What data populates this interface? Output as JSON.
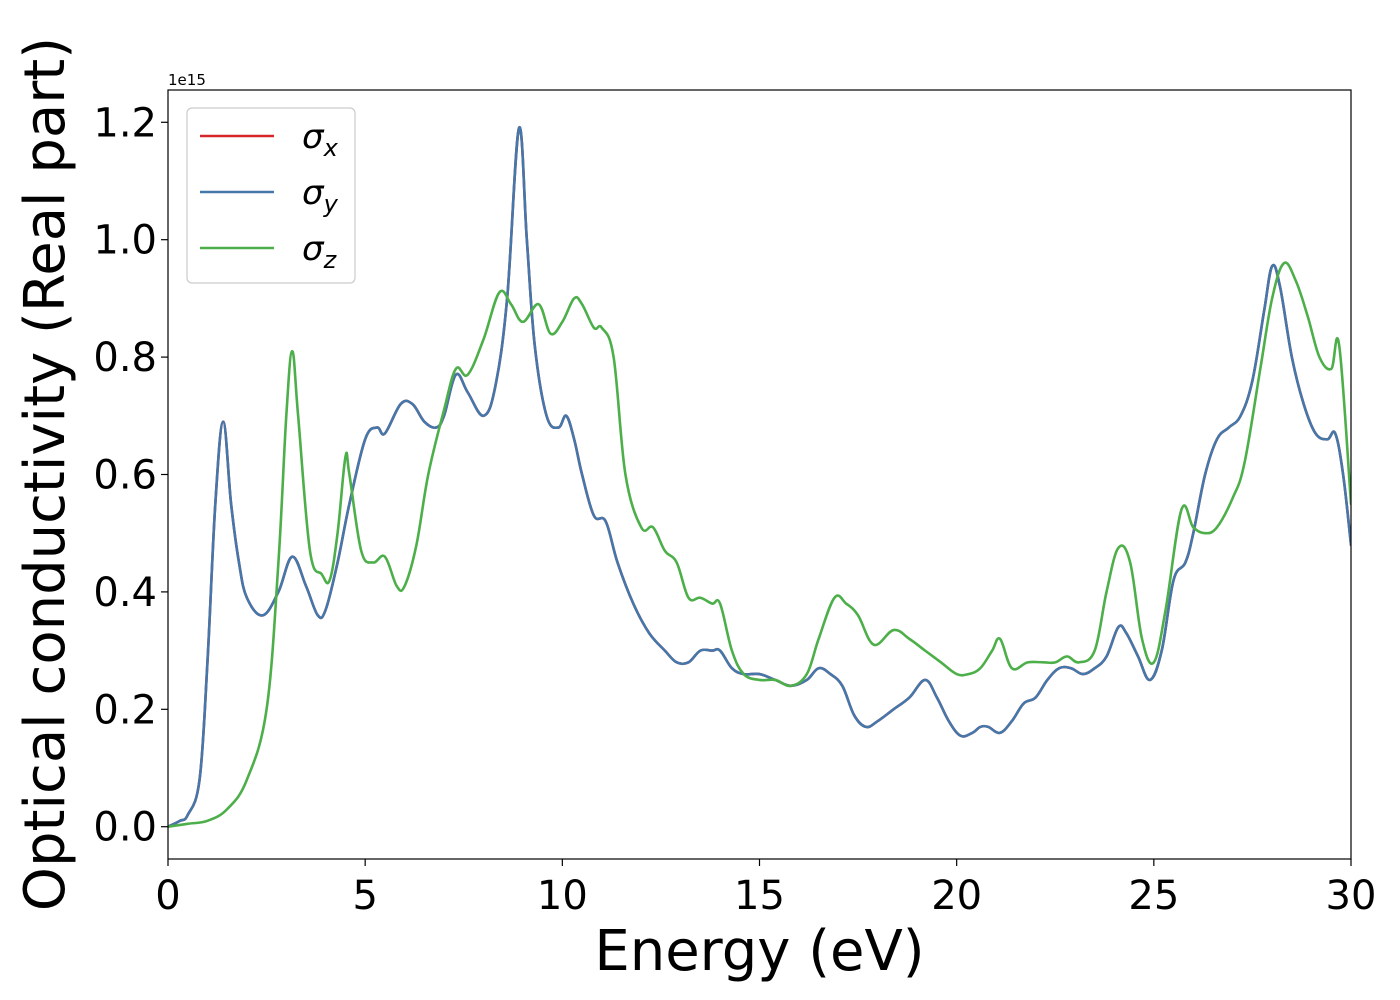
{
  "chart_data": {
    "type": "line",
    "xlabel": "Energy (eV)",
    "ylabel": "Optical conductivity (Real part)",
    "y_offset_label": "1e15",
    "xlim": [
      0,
      30
    ],
    "ylim": [
      -0.055,
      1.255
    ],
    "x_ticks": [
      0,
      5,
      10,
      15,
      20,
      25,
      30
    ],
    "x_tick_labels": [
      "0",
      "5",
      "10",
      "15",
      "20",
      "25",
      "30"
    ],
    "y_ticks": [
      0.0,
      0.2,
      0.4,
      0.6,
      0.8,
      1.0,
      1.2
    ],
    "y_tick_labels": [
      "0.0",
      "0.2",
      "0.4",
      "0.6",
      "0.8",
      "1.0",
      "1.2"
    ],
    "grid": false,
    "legend_position": "top-left",
    "colors": {
      "sigma_x": "#d62728",
      "sigma_y": "#4477aa",
      "sigma_z": "#4daf4a"
    },
    "series": [
      {
        "name": "σx",
        "name_base": "σ",
        "name_sub": "x",
        "color": "#d62728",
        "x": [
          0,
          0.3,
          0.5,
          0.8,
          1.0,
          1.2,
          1.4,
          1.6,
          1.8,
          2.0,
          2.4,
          2.8,
          3.15,
          3.5,
          3.8,
          4.0,
          4.3,
          4.6,
          5.0,
          5.3,
          5.5,
          5.9,
          6.2,
          6.5,
          6.8,
          7.0,
          7.3,
          7.6,
          8.0,
          8.3,
          8.6,
          8.9,
          9.1,
          9.3,
          9.6,
          9.9,
          10.1,
          10.3,
          10.5,
          10.8,
          11.1,
          11.4,
          11.8,
          12.2,
          12.6,
          12.9,
          13.2,
          13.5,
          13.8,
          14.0,
          14.3,
          14.6,
          15.0,
          15.4,
          15.8,
          16.2,
          16.5,
          16.8,
          17.1,
          17.4,
          17.7,
          18.0,
          18.4,
          18.8,
          19.2,
          19.5,
          19.8,
          20.1,
          20.4,
          20.6,
          20.8,
          21.1,
          21.4,
          21.7,
          22.0,
          22.3,
          22.6,
          22.9,
          23.2,
          23.5,
          23.8,
          24.1,
          24.3,
          24.6,
          24.9,
          25.2,
          25.5,
          25.8,
          26.0,
          26.3,
          26.6,
          26.9,
          27.2,
          27.5,
          27.8,
          28.0,
          28.2,
          28.5,
          28.8,
          29.1,
          29.4,
          29.6,
          29.8,
          30.0
        ],
        "y": [
          0.0,
          0.01,
          0.02,
          0.08,
          0.28,
          0.55,
          0.69,
          0.55,
          0.45,
          0.39,
          0.36,
          0.4,
          0.46,
          0.41,
          0.36,
          0.37,
          0.45,
          0.55,
          0.66,
          0.68,
          0.67,
          0.72,
          0.72,
          0.69,
          0.68,
          0.7,
          0.77,
          0.74,
          0.7,
          0.75,
          0.9,
          1.19,
          1.0,
          0.82,
          0.7,
          0.68,
          0.7,
          0.66,
          0.6,
          0.53,
          0.52,
          0.45,
          0.38,
          0.33,
          0.3,
          0.28,
          0.28,
          0.3,
          0.3,
          0.3,
          0.27,
          0.26,
          0.26,
          0.25,
          0.24,
          0.25,
          0.27,
          0.26,
          0.24,
          0.19,
          0.17,
          0.18,
          0.2,
          0.22,
          0.25,
          0.22,
          0.18,
          0.155,
          0.16,
          0.17,
          0.17,
          0.16,
          0.18,
          0.21,
          0.22,
          0.25,
          0.27,
          0.27,
          0.26,
          0.27,
          0.29,
          0.34,
          0.33,
          0.29,
          0.25,
          0.3,
          0.42,
          0.45,
          0.5,
          0.6,
          0.66,
          0.68,
          0.7,
          0.76,
          0.88,
          0.955,
          0.92,
          0.8,
          0.72,
          0.67,
          0.66,
          0.67,
          0.6,
          0.48
        ]
      },
      {
        "name": "σy",
        "name_base": "σ",
        "name_sub": "y",
        "color": "#4477aa",
        "x": [
          0,
          0.3,
          0.5,
          0.8,
          1.0,
          1.2,
          1.4,
          1.6,
          1.8,
          2.0,
          2.4,
          2.8,
          3.15,
          3.5,
          3.8,
          4.0,
          4.3,
          4.6,
          5.0,
          5.3,
          5.5,
          5.9,
          6.2,
          6.5,
          6.8,
          7.0,
          7.3,
          7.6,
          8.0,
          8.3,
          8.6,
          8.9,
          9.1,
          9.3,
          9.6,
          9.9,
          10.1,
          10.3,
          10.5,
          10.8,
          11.1,
          11.4,
          11.8,
          12.2,
          12.6,
          12.9,
          13.2,
          13.5,
          13.8,
          14.0,
          14.3,
          14.6,
          15.0,
          15.4,
          15.8,
          16.2,
          16.5,
          16.8,
          17.1,
          17.4,
          17.7,
          18.0,
          18.4,
          18.8,
          19.2,
          19.5,
          19.8,
          20.1,
          20.4,
          20.6,
          20.8,
          21.1,
          21.4,
          21.7,
          22.0,
          22.3,
          22.6,
          22.9,
          23.2,
          23.5,
          23.8,
          24.1,
          24.3,
          24.6,
          24.9,
          25.2,
          25.5,
          25.8,
          26.0,
          26.3,
          26.6,
          26.9,
          27.2,
          27.5,
          27.8,
          28.0,
          28.2,
          28.5,
          28.8,
          29.1,
          29.4,
          29.6,
          29.8,
          30.0
        ],
        "y": [
          0.0,
          0.01,
          0.02,
          0.08,
          0.28,
          0.55,
          0.69,
          0.55,
          0.45,
          0.39,
          0.36,
          0.4,
          0.46,
          0.41,
          0.36,
          0.37,
          0.45,
          0.55,
          0.66,
          0.68,
          0.67,
          0.72,
          0.72,
          0.69,
          0.68,
          0.7,
          0.77,
          0.74,
          0.7,
          0.75,
          0.9,
          1.19,
          1.0,
          0.82,
          0.7,
          0.68,
          0.7,
          0.66,
          0.6,
          0.53,
          0.52,
          0.45,
          0.38,
          0.33,
          0.3,
          0.28,
          0.28,
          0.3,
          0.3,
          0.3,
          0.27,
          0.26,
          0.26,
          0.25,
          0.24,
          0.25,
          0.27,
          0.26,
          0.24,
          0.19,
          0.17,
          0.18,
          0.2,
          0.22,
          0.25,
          0.22,
          0.18,
          0.155,
          0.16,
          0.17,
          0.17,
          0.16,
          0.18,
          0.21,
          0.22,
          0.25,
          0.27,
          0.27,
          0.26,
          0.27,
          0.29,
          0.34,
          0.33,
          0.29,
          0.25,
          0.3,
          0.42,
          0.45,
          0.5,
          0.6,
          0.66,
          0.68,
          0.7,
          0.76,
          0.88,
          0.955,
          0.92,
          0.8,
          0.72,
          0.67,
          0.66,
          0.67,
          0.6,
          0.48
        ]
      },
      {
        "name": "σz",
        "name_base": "σ",
        "name_sub": "z",
        "color": "#4daf4a",
        "x": [
          0,
          0.5,
          1.0,
          1.5,
          2.0,
          2.5,
          2.8,
          3.0,
          3.15,
          3.3,
          3.6,
          3.9,
          4.1,
          4.3,
          4.5,
          4.6,
          4.9,
          5.2,
          5.5,
          5.8,
          6.0,
          6.3,
          6.6,
          7.0,
          7.3,
          7.6,
          8.0,
          8.4,
          8.7,
          9.0,
          9.4,
          9.7,
          10.0,
          10.3,
          10.5,
          10.8,
          11.0,
          11.3,
          11.6,
          12.0,
          12.3,
          12.6,
          12.9,
          13.2,
          13.5,
          13.8,
          14.0,
          14.3,
          14.6,
          15.0,
          15.4,
          15.8,
          16.2,
          16.5,
          16.9,
          17.2,
          17.5,
          17.9,
          18.4,
          18.8,
          19.2,
          19.6,
          20.0,
          20.3,
          20.6,
          20.9,
          21.1,
          21.4,
          21.8,
          22.2,
          22.5,
          22.8,
          23.1,
          23.5,
          23.8,
          24.1,
          24.4,
          24.7,
          25.0,
          25.3,
          25.7,
          26.0,
          26.3,
          26.6,
          27.0,
          27.3,
          27.7,
          28.0,
          28.3,
          28.6,
          28.9,
          29.2,
          29.5,
          29.7,
          30.0
        ],
        "y": [
          0.0,
          0.005,
          0.01,
          0.03,
          0.08,
          0.2,
          0.45,
          0.7,
          0.81,
          0.7,
          0.47,
          0.43,
          0.42,
          0.5,
          0.63,
          0.6,
          0.47,
          0.45,
          0.46,
          0.41,
          0.41,
          0.48,
          0.6,
          0.71,
          0.78,
          0.77,
          0.83,
          0.91,
          0.89,
          0.86,
          0.89,
          0.84,
          0.86,
          0.9,
          0.89,
          0.85,
          0.85,
          0.8,
          0.6,
          0.51,
          0.51,
          0.47,
          0.45,
          0.39,
          0.39,
          0.38,
          0.38,
          0.3,
          0.26,
          0.25,
          0.25,
          0.24,
          0.26,
          0.32,
          0.39,
          0.38,
          0.36,
          0.31,
          0.335,
          0.32,
          0.3,
          0.28,
          0.26,
          0.26,
          0.27,
          0.3,
          0.32,
          0.27,
          0.28,
          0.28,
          0.28,
          0.29,
          0.28,
          0.3,
          0.4,
          0.475,
          0.45,
          0.32,
          0.28,
          0.37,
          0.54,
          0.51,
          0.5,
          0.51,
          0.56,
          0.62,
          0.78,
          0.9,
          0.96,
          0.93,
          0.87,
          0.8,
          0.78,
          0.82,
          0.55
        ]
      }
    ]
  }
}
